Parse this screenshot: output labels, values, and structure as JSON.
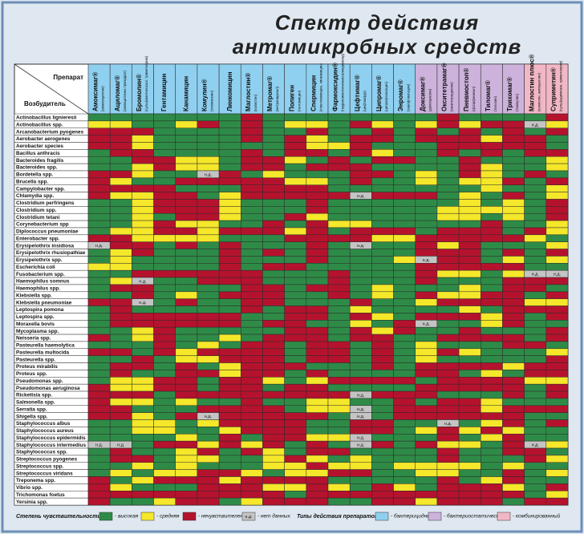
{
  "title": [
    "Спектр действия",
    "антимикробных средств"
  ],
  "corner": {
    "top": "Препарат",
    "bottom": "Возбудитель"
  },
  "levels": [
    {
      "color": "#2e8b47",
      "label": "- высокая"
    },
    {
      "color": "#f5e72a",
      "label": "- средняя"
    },
    {
      "color": "#b5122e",
      "label": "- нечувствителен"
    },
    {
      "color": "#c4c4c4",
      "label": "- нет данных",
      "mark": "н.д."
    }
  ],
  "types": [
    {
      "color": "#8fd0f0",
      "label": "- бактерицидный"
    },
    {
      "color": "#cdb3dc",
      "label": "- бактериостатический"
    },
    {
      "color": "#f2b7c6",
      "label": "- комбинированный"
    }
  ],
  "legend_titles": [
    "Степень чувствительности:",
    "Типы действия препаратов:"
  ],
  "columns": [
    {
      "name": "Амоксимаг®",
      "sub": "(амоксициллин)",
      "type": 0
    },
    {
      "name": "Ациломаг®",
      "sub": "(ампициллина тригидрат)",
      "type": 0
    },
    {
      "name": "Бромолин®",
      "sub": "(сульфаметоксазол, триметоприм)",
      "type": 0
    },
    {
      "name": "Гентамицин",
      "type": 0
    },
    {
      "name": "Канамицин",
      "type": 0
    },
    {
      "name": "Комулин®",
      "sub": "(тилмикозин)",
      "type": 0
    },
    {
      "name": "Линкомицин",
      "type": 0
    },
    {
      "name": "Маглостин®",
      "sub": "(колистин)",
      "type": 0
    },
    {
      "name": "Метромаг®",
      "sub": "(метронидазол)",
      "type": 0
    },
    {
      "name": "Полиген",
      "sub": "(гентамицин)",
      "type": 0
    },
    {
      "name": "Спермицин",
      "sub": "(спектиномицин, линкомицин)",
      "type": 0
    },
    {
      "name": "Фармоксидин®",
      "sub": "(гидроксиметилхиноксалиндиоксид)",
      "type": 0
    },
    {
      "name": "Цефтимаг®",
      "sub": "(цефтиофур)",
      "type": 0
    },
    {
      "name": "Ципромаг®",
      "sub": "(ципрофлоксацин)",
      "type": 0
    },
    {
      "name": "Энромаг®",
      "sub": "(энрофлоксацин)",
      "type": 0
    },
    {
      "name": "Доксимаг®",
      "sub": "(доксициклин)",
      "type": 1
    },
    {
      "name": "Окситетрамаг®",
      "sub": "(окситетрациклин)",
      "type": 1
    },
    {
      "name": "Пневмостоп®",
      "sub": "(флорфеникол)",
      "type": 1
    },
    {
      "name": "Тиломаг®",
      "sub": "(тилозин)",
      "type": 1
    },
    {
      "name": "Трихомаг®",
      "sub": "(тиамулин)",
      "type": 1
    },
    {
      "name": "Маглостин плюс®",
      "sub": "(колистин, ампициллин)",
      "type": 2
    },
    {
      "name": "Суприметин®",
      "sub": "(сульфадимезин, триметоприм)",
      "type": 2
    }
  ],
  "rows": [
    {
      "name": "Actinobacillus lignieresii",
      "cells": "0000000200000000200002"
    },
    {
      "name": "Actinobacillus spp.",
      "cells": "1100120201102101212231"
    },
    {
      "name": "Arcanobacterium pyogenes",
      "cells": "2220000200200202020202"
    },
    {
      "name": "Aerobacter aerogenes",
      "cells": "2210000202102202221220"
    },
    {
      "name": "Aerobacter species",
      "cells": "2210000002112000222220"
    },
    {
      "name": "Bacillus anthracis",
      "cells": "0220000202202100202022"
    },
    {
      "name": "Bacteroides fragilis",
      "cells": "0022110221020220020001"
    },
    {
      "name": "Bacteroides spp.",
      "cells": "0012110220222000021001"
    },
    {
      "name": "Bordetella spp.",
      "cells": "2210032010002201021020"
    },
    {
      "name": "Brucella spp.",
      "cells": "2100222221102001011202"
    },
    {
      "name": "Campylobacter spp.",
      "cells": "2222000222200000001001"
    },
    {
      "name": "Chlamydia spp.",
      "cells": "2112201222223222010201"
    },
    {
      "name": "Clostridium perfringens",
      "cells": "0012221000200000010102"
    },
    {
      "name": "Clostridium spp.",
      "cells": "0012221000200000111102"
    },
    {
      "name": "Clostridium tetani",
      "cells": "0010221002100000110102"
    },
    {
      "name": "Corynebacterium spp",
      "cells": "0012110020211000002001"
    },
    {
      "name": "Diplococcus pneumoniae",
      "cells": "0112212221202220222021"
    },
    {
      "name": "Enterobacter spp.",
      "cells": "2211110002222112222210"
    },
    {
      "name": "Erysipelothrix insidiosa",
      "cells": "3220202000203002120001"
    },
    {
      "name": "Erysipelothrix rhusiopathiae",
      "cells": "0120002020200002220202"
    },
    {
      "name": "Erysipelothrix spp.",
      "cells": "0100002000200013220101"
    },
    {
      "name": "Escherichia coli",
      "cells": "1100002022000002222200"
    },
    {
      "name": "Fusobacterium spp.",
      "cells": "0022222200020002110133"
    },
    {
      "name": "Haemophilus somnus",
      "cells": "0130022200020002000222"
    },
    {
      "name": "Haemophilus spp.",
      "cells": "0220000220220100010220"
    },
    {
      "name": "Klebsiella spp.",
      "cells": "0020102220020102112202"
    },
    {
      "name": "Klebsiella pneumoniae",
      "cells": "2230200220002001222211"
    },
    {
      "name": "Leptospira pomona",
      "cells": "0200000202201000010222"
    },
    {
      "name": "Leptospira spp.",
      "cells": "0222222002202102221202"
    },
    {
      "name": "Moraxella bovis",
      "cells": "0222222022001023001200"
    },
    {
      "name": "Mycoplasma spp.",
      "cells": "0012000002202120020002"
    },
    {
      "name": "Neisseria spp.",
      "cells": "2012001022202200222202"
    },
    {
      "name": "Pasteurella haemolytica",
      "cells": "0002010220220201000220"
    },
    {
      "name": "Pasteurella multocida",
      "cells": "2202122220220201210001"
    },
    {
      "name": "Pasteurella spp.",
      "cells": "0020112220220201000002"
    },
    {
      "name": "Proteus mirabilis",
      "cells": "0220201222000202222122"
    },
    {
      "name": "Proteus spp.",
      "cells": "0200221220200002201022"
    },
    {
      "name": "Pseudomonas spp.",
      "cells": "0112202210122220222211"
    },
    {
      "name": "Pseudomonas aeruginosa",
      "cells": "2112202202200002222202"
    },
    {
      "name": "Rickettsia spp.",
      "cells": "2220222222223222000202"
    },
    {
      "name": "Salmonella spp.",
      "cells": "2110100200110020221000"
    },
    {
      "name": "Serratia spp.",
      "cells": "2200022220113022221222"
    },
    {
      "name": "Shigella spp.",
      "cells": "2210232222203022222200"
    },
    {
      "name": "Staphylococcus albus",
      "cells": "0011012222002200301202"
    },
    {
      "name": "Staphylococcus aureus",
      "cells": "0011001222002201212100"
    },
    {
      "name": "Staphylococcus epidermidis",
      "cells": "0000102022113000201200"
    },
    {
      "name": "Staphylococcus intermedius",
      "cells": "3302212120203202110231"
    },
    {
      "name": "Staphylococcus spp.",
      "cells": "0200120210220000200220"
    },
    {
      "name": "Streptococcus pyogenes",
      "cells": "0220110012101000200021"
    },
    {
      "name": "Streptococcus spp.",
      "cells": "0010100011211011110100"
    },
    {
      "name": "Streptococcus viridans",
      "cells": "0101122101122001100201"
    },
    {
      "name": "Treponema spp.",
      "cells": "2012221222200000201200"
    },
    {
      "name": "Vibrio spp.",
      "cells": "2100022211210210222102"
    },
    {
      "name": "Trichomonas foetus",
      "cells": "2222222220222222222201"
    },
    {
      "name": "Yersinia spp.",
      "cells": "2001220122200221222022"
    }
  ]
}
